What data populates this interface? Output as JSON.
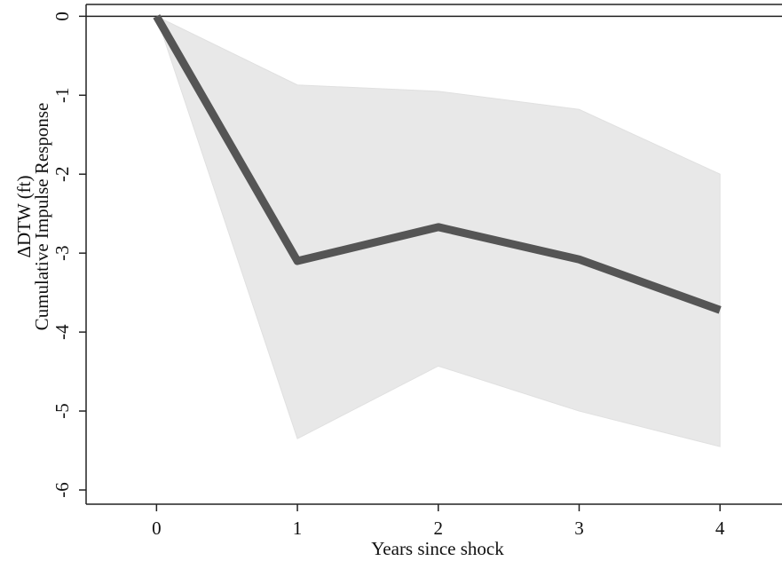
{
  "chart_data": {
    "type": "line",
    "ylabel": [
      "ΔDTW (ft)",
      "Cumulative Impulse Response"
    ],
    "xlabel": "Years since shock",
    "x": [
      0,
      1,
      2,
      3,
      4
    ],
    "series": [
      {
        "color": "#555555",
        "values": [
          0,
          -3.1,
          -2.67,
          -3.08,
          -3.72
        ]
      }
    ],
    "band": {
      "color": "#e8e8e8",
      "upper": [
        0,
        -0.87,
        -0.95,
        -1.18,
        -2.0
      ],
      "lower": [
        0,
        -5.35,
        -4.43,
        -5.0,
        -5.45
      ]
    },
    "reference_line": 0,
    "xlim": [
      -0.5,
      4.44
    ],
    "ylim": [
      -6.18,
      0.15
    ],
    "xticks": [
      0,
      1,
      2,
      3,
      4
    ],
    "yticks": [
      0,
      -1,
      -2,
      -3,
      -4,
      -5,
      -6
    ]
  }
}
